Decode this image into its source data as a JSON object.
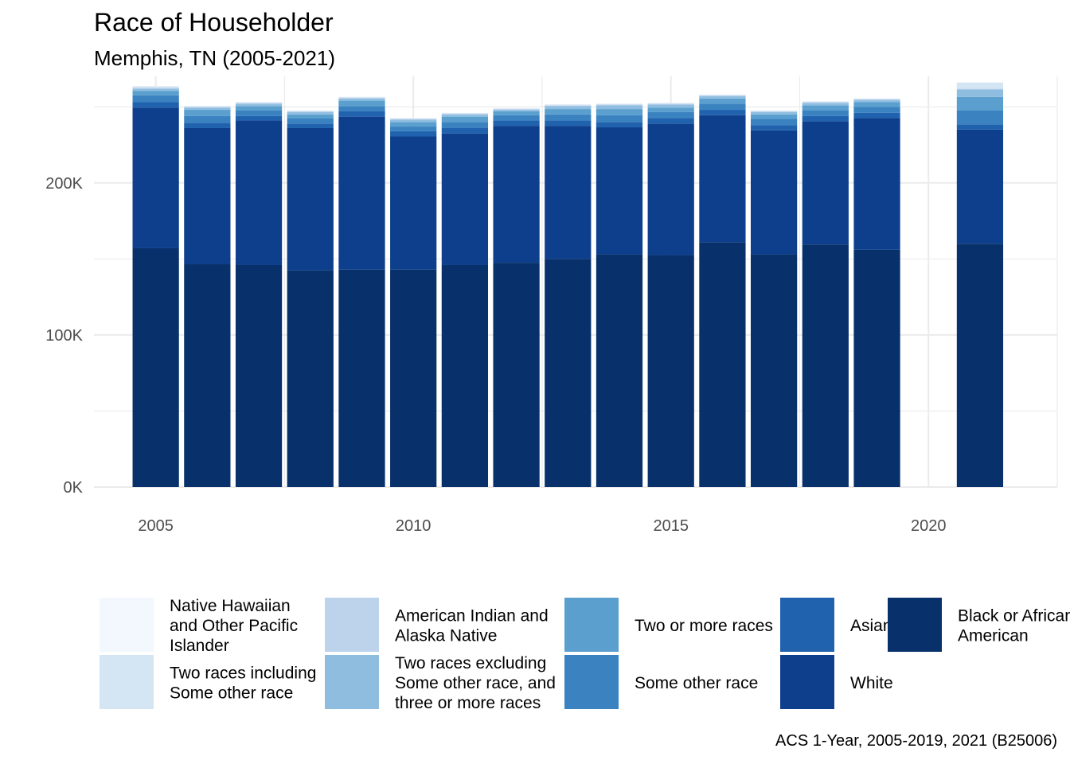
{
  "chart_data": {
    "type": "bar",
    "stacked": true,
    "title": "Race of Householder",
    "subtitle": "Memphis, TN (2005-2021)",
    "caption": "ACS 1-Year, 2005-2019, 2021 (B25006)",
    "xlabel": "",
    "ylabel": "",
    "x": [
      2005,
      2006,
      2007,
      2008,
      2009,
      2010,
      2011,
      2012,
      2013,
      2014,
      2015,
      2016,
      2017,
      2018,
      2019,
      2021
    ],
    "xlim": [
      2003.8,
      2022.5
    ],
    "ylim": [
      0,
      270000
    ],
    "x_ticks": [
      2005,
      2010,
      2015,
      2020
    ],
    "x_tick_labels": [
      "2005",
      "2010",
      "2015",
      "2020"
    ],
    "y_ticks": [
      0,
      100000,
      200000
    ],
    "y_tick_labels": [
      "0K",
      "100K",
      "200K"
    ],
    "grid": true,
    "legend_position": "bottom",
    "series": [
      {
        "name": "Black or African American",
        "legend_label": [
          "Black or African",
          "American"
        ],
        "color": "#08306b",
        "values": [
          157000,
          146500,
          146000,
          142500,
          143000,
          143000,
          146000,
          147500,
          150000,
          153000,
          152500,
          161000,
          153000,
          159500,
          156000,
          160000
        ]
      },
      {
        "name": "White",
        "legend_label": [
          "White"
        ],
        "color": "#0d3f8c",
        "values": [
          92500,
          89500,
          95000,
          93500,
          100500,
          87500,
          86500,
          90000,
          87500,
          83500,
          86500,
          83500,
          81500,
          81000,
          86500,
          75000
        ]
      },
      {
        "name": "Asian",
        "legend_label": [
          "Asian"
        ],
        "color": "#2062ae",
        "values": [
          3500,
          3500,
          3000,
          3000,
          3500,
          3500,
          3500,
          3500,
          3500,
          3500,
          3500,
          3500,
          3500,
          3500,
          3500,
          3500
        ]
      },
      {
        "name": "Some other race",
        "legend_label": [
          "Some other race"
        ],
        "color": "#3a82c0",
        "values": [
          4500,
          4500,
          3500,
          3500,
          3500,
          3000,
          4000,
          3500,
          4000,
          4500,
          4000,
          4000,
          4000,
          3500,
          4000,
          9000
        ]
      },
      {
        "name": "Two or more races",
        "legend_label": [
          "Two or more races"
        ],
        "color": "#5a9fce",
        "values": [
          3000,
          4000,
          3000,
          2500,
          3500,
          3000,
          3500,
          2500,
          3500,
          4000,
          3000,
          3500,
          3000,
          3500,
          3000,
          9000
        ]
      },
      {
        "name": "Two races excluding Some other race, and three or more races",
        "legend_label": [
          "Two races excluding",
          "Some other race, and",
          "three or more races"
        ],
        "color": "#8fbde0",
        "values": [
          1500,
          1500,
          1500,
          1500,
          1500,
          1500,
          1500,
          1000,
          2000,
          2500,
          2000,
          1500,
          1500,
          1500,
          1500,
          5000
        ]
      },
      {
        "name": "American Indian and Alaska Native",
        "legend_label": [
          "American Indian and",
          "Alaska Native"
        ],
        "color": "#bdd3ec",
        "values": [
          500,
          500,
          500,
          500,
          500,
          500,
          500,
          500,
          500,
          500,
          500,
          500,
          500,
          500,
          500,
          500
        ]
      },
      {
        "name": "Two races including Some other race",
        "legend_label": [
          "Two races including",
          "Some other race"
        ],
        "color": "#d4e5f4",
        "values": [
          1000,
          500,
          500,
          500,
          500,
          500,
          500,
          500,
          500,
          500,
          500,
          500,
          500,
          500,
          500,
          4000
        ]
      },
      {
        "name": "Native Hawaiian and Other Pacific Islander",
        "legend_label": [
          "Native Hawaiian",
          "and Other Pacific",
          "Islander"
        ],
        "color": "#f2f8fd",
        "values": [
          200,
          100,
          100,
          100,
          100,
          100,
          100,
          100,
          100,
          100,
          100,
          100,
          100,
          100,
          100,
          200
        ]
      }
    ],
    "legend_order": [
      "Native Hawaiian and Other Pacific Islander",
      "Two races including Some other race",
      "American Indian and Alaska Native",
      "Two races excluding Some other race, and three or more races",
      "Two or more races",
      "Some other race",
      "Asian",
      "White",
      "Black or African American"
    ]
  }
}
